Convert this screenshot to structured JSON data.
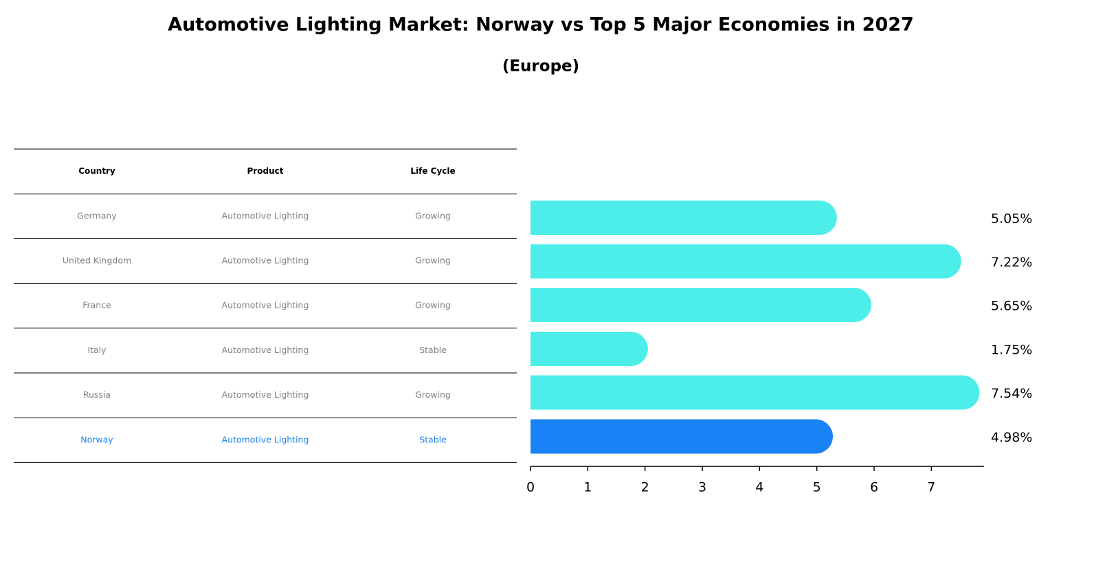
{
  "chart_data": {
    "type": "bar",
    "orientation": "horizontal",
    "title": "Automotive Lighting Market: Norway vs Top 5 Major Economies in 2027",
    "subtitle": "(Europe)",
    "table": {
      "columns": [
        "Country",
        "Product",
        "Life Cycle"
      ],
      "rows": [
        [
          "Germany",
          "Automotive Lighting",
          "Growing"
        ],
        [
          "United Kingdom",
          "Automotive Lighting",
          "Growing"
        ],
        [
          "France",
          "Automotive Lighting",
          "Growing"
        ],
        [
          "Italy",
          "Automotive Lighting",
          "Stable"
        ],
        [
          "Russia",
          "Automotive Lighting",
          "Growing"
        ],
        [
          "Norway",
          "Automotive Lighting",
          "Stable"
        ]
      ]
    },
    "values": [
      5.05,
      7.22,
      5.65,
      1.75,
      7.54,
      4.98
    ],
    "value_labels": [
      "5.05%",
      "7.22%",
      "5.65%",
      "1.75%",
      "7.54%",
      "4.98%"
    ],
    "color": "#4deeea",
    "highlight": "Norway",
    "highlight_color": "#1982f4",
    "text_color": "#808080",
    "xlim": [
      0,
      7.92
    ],
    "xticks": [
      0,
      1,
      2,
      3,
      4,
      5,
      6,
      7
    ]
  }
}
